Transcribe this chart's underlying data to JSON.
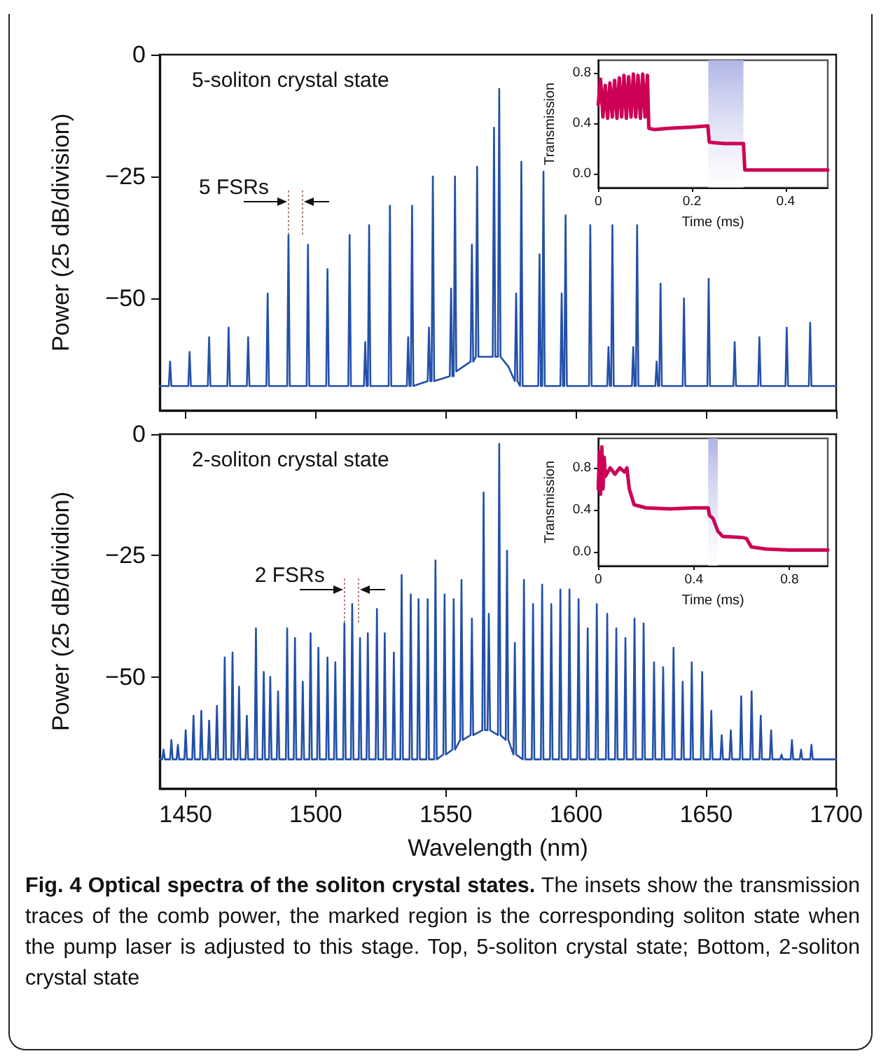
{
  "chart_data": [
    {
      "type": "line",
      "ylabel": "Power (25 dB/division)",
      "color": "#2350a8",
      "annotations": [
        "5-soliton crystal state",
        {
          "text": "5 FSRs",
          "x": 1489.5,
          "y": -37
        }
      ],
      "x": [
        1440,
        1443.5,
        1444,
        1444.5,
        1451,
        1451.5,
        1452,
        1458.5,
        1459,
        1459.5,
        1466,
        1466.5,
        1467,
        1473.5,
        1474,
        1474.5,
        1481,
        1481.5,
        1482,
        1489,
        1489.5,
        1490,
        1496.5,
        1497,
        1497.5,
        1504,
        1504.5,
        1505,
        1512.5,
        1513,
        1513.5,
        1518.5,
        1519,
        1519.5,
        1520,
        1520.5,
        1521,
        1528,
        1528.5,
        1529,
        1535,
        1535.5,
        1536,
        1536.5,
        1537,
        1537.5,
        1543,
        1543.5,
        1544,
        1544.5,
        1545,
        1545.5,
        1551.5,
        1552,
        1552.5,
        1553,
        1553.5,
        1554,
        1559.5,
        1560,
        1560.5,
        1561.5,
        1562,
        1562.5,
        1568,
        1568.5,
        1569,
        1570,
        1570.5,
        1571,
        1574,
        1576.5,
        1577,
        1577.5,
        1578.5,
        1579,
        1579.5,
        1585.5,
        1586,
        1586.5,
        1587,
        1587.5,
        1588,
        1594,
        1594.5,
        1595,
        1595.5,
        1596,
        1596.5,
        1605,
        1605.5,
        1606,
        1612,
        1612.5,
        1613,
        1613.5,
        1614,
        1614.5,
        1621.5,
        1622,
        1622.5,
        1623,
        1623.5,
        1624,
        1630.5,
        1631,
        1631.5,
        1632,
        1632.5,
        1633,
        1641,
        1641.5,
        1642,
        1650.5,
        1651,
        1651.5,
        1660.5,
        1661,
        1661.5,
        1670,
        1670.5,
        1671,
        1680.5,
        1681,
        1681.5,
        1689.5,
        1690,
        1690.5,
        1700
      ],
      "values": [
        -68,
        -68,
        -63,
        -68,
        -68,
        -61,
        -68,
        -68,
        -58,
        -68,
        -68,
        -56,
        -68,
        -68,
        -58,
        -68,
        -68,
        -49,
        -68,
        -68,
        -37,
        -68,
        -68,
        -39,
        -68,
        -68,
        -44,
        -68,
        -68,
        -37,
        -68,
        -68,
        -59,
        -68,
        -68,
        -35,
        -68,
        -68,
        -31,
        -68,
        -68,
        -58,
        -68,
        -68,
        -31,
        -68,
        -67,
        -56,
        -67,
        -67,
        -25,
        -67,
        -66,
        -48,
        -66,
        -66,
        -25,
        -65,
        -63,
        -39,
        -63,
        -62,
        -23,
        -62,
        -62,
        -15,
        -62,
        -62,
        -7,
        -62,
        -64,
        -67,
        -49,
        -67,
        -68,
        -22,
        -68,
        -68,
        -41,
        -68,
        -68,
        -24,
        -68,
        -68,
        -49,
        -68,
        -68,
        -33,
        -68,
        -68,
        -35,
        -68,
        -68,
        -60,
        -68,
        -68,
        -35,
        -68,
        -68,
        -60,
        -68,
        -68,
        -35,
        -68,
        -68,
        -63,
        -68,
        -68,
        -47,
        -68,
        -68,
        -50,
        -68,
        -68,
        -46,
        -68,
        -68,
        -59,
        -68,
        -68,
        -58,
        -68,
        -68,
        -56,
        -68,
        -68,
        -55,
        -68,
        -68
      ],
      "xlim": [
        1440,
        1700
      ],
      "xticks": [
        1450,
        1500,
        1550,
        1600,
        1650,
        1700
      ],
      "ylim": [
        -73,
        0
      ],
      "yticks": [
        {
          "value": -50,
          "label": "−50"
        },
        {
          "value": -25,
          "label": "−25"
        },
        0
      ],
      "tick_labels": "y"
    },
    {
      "type": "line",
      "xlabel": "Time (ms)",
      "ylabel": "Transmission",
      "color": "#cc0055",
      "x": [
        0,
        0.005,
        0.01,
        0.015,
        0.02,
        0.025,
        0.03,
        0.035,
        0.04,
        0.045,
        0.05,
        0.055,
        0.06,
        0.065,
        0.07,
        0.075,
        0.08,
        0.085,
        0.09,
        0.095,
        0.1,
        0.105,
        0.108,
        0.12,
        0.15,
        0.2,
        0.234,
        0.237,
        0.27,
        0.31,
        0.313,
        0.35,
        0.4,
        0.45,
        0.49
      ],
      "values": [
        0.55,
        0.75,
        0.45,
        0.7,
        0.44,
        0.72,
        0.45,
        0.74,
        0.44,
        0.76,
        0.45,
        0.78,
        0.44,
        0.77,
        0.45,
        0.79,
        0.45,
        0.78,
        0.44,
        0.79,
        0.45,
        0.78,
        0.36,
        0.35,
        0.36,
        0.37,
        0.38,
        0.25,
        0.24,
        0.24,
        0.03,
        0.03,
        0.03,
        0.03,
        0.03
      ],
      "bands": [
        {
          "axis": "x",
          "from": 0.235,
          "to": 0.31,
          "color": "#b0b5e5"
        }
      ],
      "xlim": [
        0,
        0.49
      ],
      "xticks": [
        0,
        0.2,
        0.4
      ],
      "ylim": [
        -0.11,
        0.9
      ],
      "yticks": [
        {
          "value": 0,
          "label": "0.0"
        },
        0.4,
        0.8
      ]
    },
    {
      "type": "line",
      "xlabel": "Wavelength (nm)",
      "ylabel": "Power (25 dB/dividion)",
      "color": "#2350a8",
      "annotations": [
        "2-soliton crystal state",
        {
          "text": "2 FSRs",
          "x": 1511,
          "y": -39
        }
      ],
      "x": [
        1440,
        1441,
        1441.5,
        1442,
        1444,
        1444.5,
        1445,
        1446.5,
        1447,
        1447.5,
        1449.5,
        1450,
        1450.5,
        1452.5,
        1453,
        1453.5,
        1455.5,
        1456,
        1456.5,
        1458.5,
        1459,
        1459.5,
        1461.5,
        1462,
        1462.5,
        1464.5,
        1465,
        1465.5,
        1467.5,
        1468,
        1468.5,
        1470,
        1470.5,
        1471,
        1473,
        1473.5,
        1474,
        1476.5,
        1477,
        1477.5,
        1479.5,
        1480,
        1480.5,
        1482,
        1482.5,
        1483,
        1485,
        1485.5,
        1486,
        1488.5,
        1489,
        1489.5,
        1491.5,
        1492,
        1492.5,
        1494.5,
        1495,
        1495.5,
        1497.5,
        1498,
        1498.5,
        1500.5,
        1501,
        1501.5,
        1504,
        1504.5,
        1505,
        1507,
        1507.5,
        1508,
        1510.5,
        1511,
        1511.5,
        1513.5,
        1514,
        1514.5,
        1516.5,
        1517,
        1517.5,
        1519.5,
        1520,
        1520.5,
        1523,
        1523.5,
        1524,
        1526,
        1526.5,
        1527,
        1529.5,
        1530,
        1530.5,
        1532.5,
        1533,
        1533.5,
        1536,
        1536.5,
        1537,
        1539,
        1539.5,
        1540,
        1542.5,
        1543,
        1543.5,
        1545.5,
        1546,
        1546.5,
        1549,
        1549.5,
        1550,
        1552.5,
        1553,
        1553.5,
        1555.5,
        1556,
        1556.5,
        1559.5,
        1560,
        1560.5,
        1564,
        1564.5,
        1565,
        1566,
        1566.5,
        1567,
        1570,
        1570.5,
        1571,
        1573,
        1573.5,
        1574,
        1576,
        1576.5,
        1577,
        1579.5,
        1580,
        1580.5,
        1583,
        1583.5,
        1584,
        1586.5,
        1587,
        1587.5,
        1590,
        1590.5,
        1591,
        1593.5,
        1594,
        1594.5,
        1597,
        1597.5,
        1598,
        1600.5,
        1601,
        1601.5,
        1604,
        1604.5,
        1605,
        1607.5,
        1608,
        1608.5,
        1611.5,
        1612,
        1612.5,
        1615,
        1615.5,
        1616,
        1618.5,
        1619,
        1619.5,
        1622,
        1622.5,
        1623,
        1625.5,
        1626,
        1626.5,
        1629.5,
        1630,
        1630.5,
        1633,
        1633.5,
        1634,
        1637,
        1637.5,
        1638,
        1640.5,
        1641,
        1641.5,
        1644,
        1644.5,
        1645,
        1648,
        1648.5,
        1649,
        1651.5,
        1652,
        1652.5,
        1655.5,
        1656,
        1656.5,
        1659,
        1659.5,
        1660,
        1663,
        1663.5,
        1664,
        1667,
        1667.5,
        1668,
        1670.5,
        1671,
        1671.5,
        1674.5,
        1675,
        1675.5,
        1678.5,
        1679,
        1679.5,
        1682.5,
        1683,
        1683.5,
        1686,
        1686.5,
        1687,
        1690,
        1690.5,
        1691,
        1700
      ],
      "values": [
        -67,
        -67,
        -65,
        -67,
        -67,
        -63,
        -67,
        -67,
        -64,
        -67,
        -67,
        -61,
        -67,
        -67,
        -58,
        -67,
        -67,
        -57,
        -67,
        -67,
        -59,
        -67,
        -67,
        -56,
        -67,
        -67,
        -46,
        -67,
        -67,
        -45,
        -67,
        -67,
        -52,
        -67,
        -67,
        -58,
        -67,
        -67,
        -40,
        -67,
        -67,
        -49,
        -67,
        -67,
        -50,
        -67,
        -67,
        -53,
        -67,
        -67,
        -40,
        -67,
        -67,
        -42,
        -67,
        -67,
        -51,
        -67,
        -67,
        -41,
        -67,
        -67,
        -44,
        -67,
        -67,
        -46,
        -67,
        -67,
        -47,
        -67,
        -67,
        -39,
        -67,
        -67,
        -35,
        -67,
        -67,
        -42,
        -67,
        -67,
        -41,
        -67,
        -67,
        -36,
        -67,
        -67,
        -41,
        -67,
        -67,
        -45,
        -67,
        -67,
        -29,
        -67,
        -67,
        -33,
        -67,
        -67,
        -34,
        -67,
        -67,
        -34,
        -67,
        -67,
        -26,
        -67,
        -66,
        -33,
        -66,
        -65,
        -34,
        -65,
        -63,
        -30,
        -63,
        -62,
        -38,
        -62,
        -61,
        -12,
        -61,
        -61,
        -37,
        -61,
        -62,
        -2,
        -62,
        -63,
        -24,
        -63,
        -66,
        -43,
        -66,
        -67,
        -30,
        -67,
        -67,
        -35,
        -67,
        -67,
        -31,
        -67,
        -67,
        -35,
        -67,
        -67,
        -32,
        -67,
        -67,
        -32,
        -67,
        -67,
        -34,
        -67,
        -67,
        -40,
        -67,
        -67,
        -35,
        -67,
        -67,
        -37,
        -67,
        -67,
        -40,
        -67,
        -67,
        -42,
        -67,
        -67,
        -38,
        -67,
        -67,
        -39,
        -67,
        -67,
        -47,
        -67,
        -67,
        -48,
        -67,
        -67,
        -44,
        -67,
        -67,
        -51,
        -67,
        -67,
        -47,
        -67,
        -67,
        -49,
        -67,
        -67,
        -57,
        -67,
        -67,
        -62,
        -67,
        -67,
        -61,
        -67,
        -67,
        -54,
        -67,
        -67,
        -53,
        -67,
        -67,
        -58,
        -67,
        -67,
        -61,
        -67,
        -67,
        -66,
        -67,
        -67,
        -63,
        -67,
        -67,
        -65,
        -67,
        -67,
        -64,
        -67,
        -67
      ],
      "xlim": [
        1440,
        1700
      ],
      "xticks": [
        1450,
        1500,
        1550,
        1600,
        1650,
        1700
      ],
      "ylim": [
        -73,
        0
      ],
      "yticks": [
        {
          "value": -50,
          "label": "−50"
        },
        {
          "value": -25,
          "label": "−25"
        },
        0
      ]
    },
    {
      "type": "line",
      "xlabel": "Time (ms)",
      "ylabel": "Transmission",
      "color": "#cc0055",
      "x": [
        0,
        0.005,
        0.01,
        0.015,
        0.02,
        0.025,
        0.03,
        0.05,
        0.07,
        0.09,
        0.11,
        0.12,
        0.13,
        0.15,
        0.2,
        0.3,
        0.4,
        0.46,
        0.465,
        0.48,
        0.5,
        0.52,
        0.6,
        0.62,
        0.64,
        0.7,
        0.8,
        0.96
      ],
      "values": [
        0.6,
        0.95,
        0.55,
        1.0,
        0.6,
        0.9,
        0.72,
        0.8,
        0.74,
        0.8,
        0.76,
        0.8,
        0.6,
        0.45,
        0.42,
        0.41,
        0.42,
        0.42,
        0.35,
        0.32,
        0.2,
        0.15,
        0.14,
        0.13,
        0.05,
        0.03,
        0.02,
        0.02
      ],
      "bands": [
        {
          "axis": "x",
          "from": 0.46,
          "to": 0.5,
          "color": "#b0b5e5"
        }
      ],
      "xlim": [
        0,
        0.96
      ],
      "xticks": [
        0,
        0.4,
        0.8
      ],
      "ylim": [
        -0.13,
        1.08
      ],
      "yticks": [
        {
          "value": 0,
          "label": "0.0"
        },
        0.4,
        0.8
      ]
    },
    {
      "type": "other",
      "title": "Fig. 4 Optical spectra of the soliton crystal states.",
      "annotations": [
        "The insets show the transmission traces of the comb power, the marked region is the corresponding soliton state when the pump laser is adjusted to this stage. Top, 5-soliton crystal state; Bottom, 2-soliton crystal state"
      ]
    }
  ]
}
